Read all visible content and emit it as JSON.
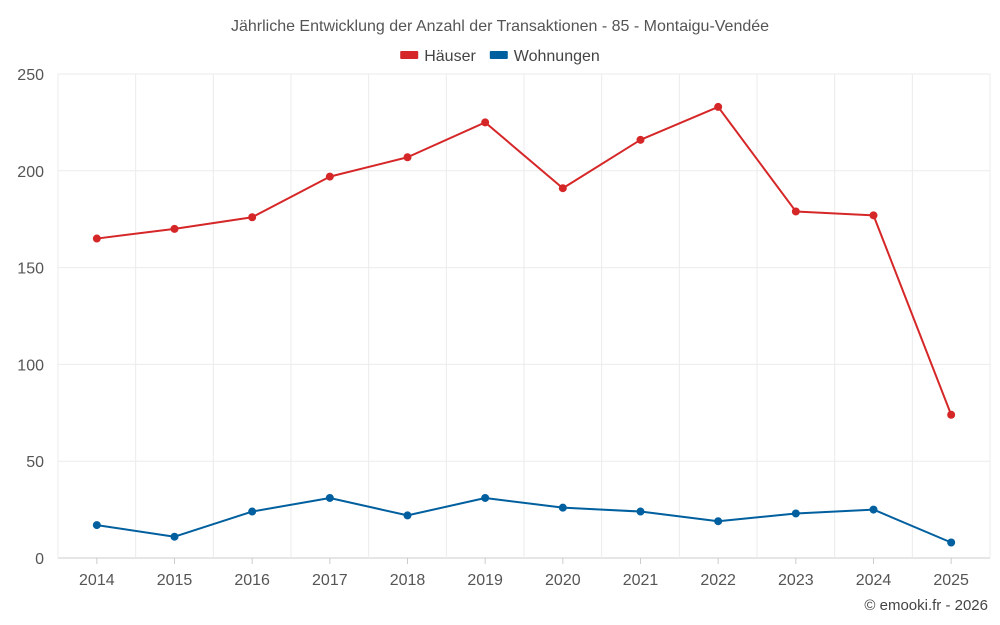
{
  "chart_data": {
    "type": "line",
    "title": "Jährliche Entwicklung der Anzahl der Transaktionen - 85 - Montaigu-Vendée",
    "categories": [
      "2014",
      "2015",
      "2016",
      "2017",
      "2018",
      "2019",
      "2020",
      "2021",
      "2022",
      "2023",
      "2024",
      "2025"
    ],
    "series": [
      {
        "name": "Häuser",
        "color": "#d62728",
        "values": [
          165,
          170,
          176,
          197,
          207,
          225,
          191,
          216,
          233,
          179,
          177,
          74
        ]
      },
      {
        "name": "Wohnungen",
        "color": "#005f9e",
        "values": [
          17,
          11,
          24,
          31,
          22,
          31,
          26,
          24,
          19,
          23,
          25,
          8
        ]
      }
    ],
    "yticks": [
      0,
      50,
      100,
      150,
      200,
      250
    ],
    "ylim": [
      0,
      250
    ],
    "xlabel": "",
    "ylabel": "",
    "grid": true,
    "legend": "top-center"
  },
  "credit": "© emooki.fr - 2026"
}
